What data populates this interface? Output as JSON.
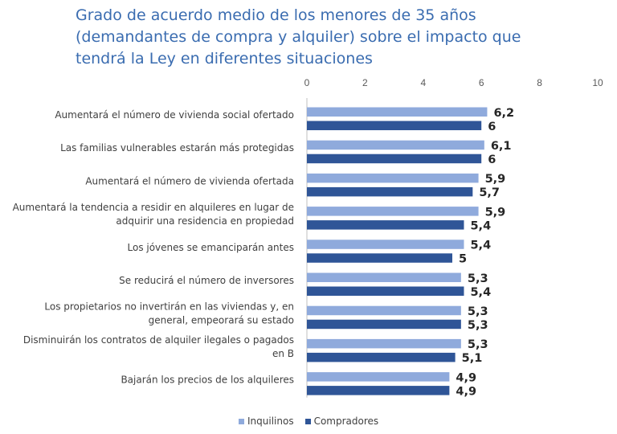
{
  "chart_data": {
    "type": "bar",
    "orientation": "horizontal",
    "title": "Grado de acuerdo medio de los menores de 35 años (demandantes de compra y alquiler) sobre el impacto que tendrá la Ley en diferentes situaciones",
    "title_lines": [
      "Grado de acuerdo medio de los menores de 35 años",
      "(demandantes de compra y alquiler) sobre el impacto que",
      "tendrá la Ley en diferentes situaciones"
    ],
    "xlabel": "",
    "ylabel": "",
    "xlim": [
      0,
      10
    ],
    "ticks": [
      "0",
      "2",
      "4",
      "6",
      "8",
      "10"
    ],
    "grid": false,
    "legend_position": "bottom",
    "categories": [
      [
        "Aumentará el número de vivienda social ofertado"
      ],
      [
        "Las familias vulnerables estarán más protegidas"
      ],
      [
        "Aumentará el número de vivienda ofertada"
      ],
      [
        "Aumentará la tendencia a residir en alquileres en lugar de",
        "adquirir una residencia en propiedad"
      ],
      [
        "Los jóvenes se emanciparán antes"
      ],
      [
        "Se reducirá el número de inversores"
      ],
      [
        "Los propietarios no invertirán en las viviendas y, en",
        "general, empeorará su estado"
      ],
      [
        "Disminuirán los contratos de alquiler ilegales o pagados",
        "en B"
      ],
      [
        "Bajarán los precios de los alquileres"
      ]
    ],
    "series": [
      {
        "name": "Inquilinos",
        "color": "#8faadc",
        "values": [
          6.2,
          6.1,
          5.9,
          5.9,
          5.4,
          5.3,
          5.3,
          5.3,
          4.9
        ],
        "labels": [
          "6,2",
          "6,1",
          "5,9",
          "5,9",
          "5,4",
          "5,3",
          "5,3",
          "5,3",
          "4,9"
        ]
      },
      {
        "name": "Compradores",
        "color": "#2f5597",
        "values": [
          6,
          6,
          5.7,
          5.4,
          5,
          5.4,
          5.3,
          5.1,
          4.9
        ],
        "labels": [
          "6",
          "6",
          "5,7",
          "5,4",
          "5",
          "5,4",
          "5,3",
          "5,1",
          "4,9"
        ]
      }
    ]
  }
}
